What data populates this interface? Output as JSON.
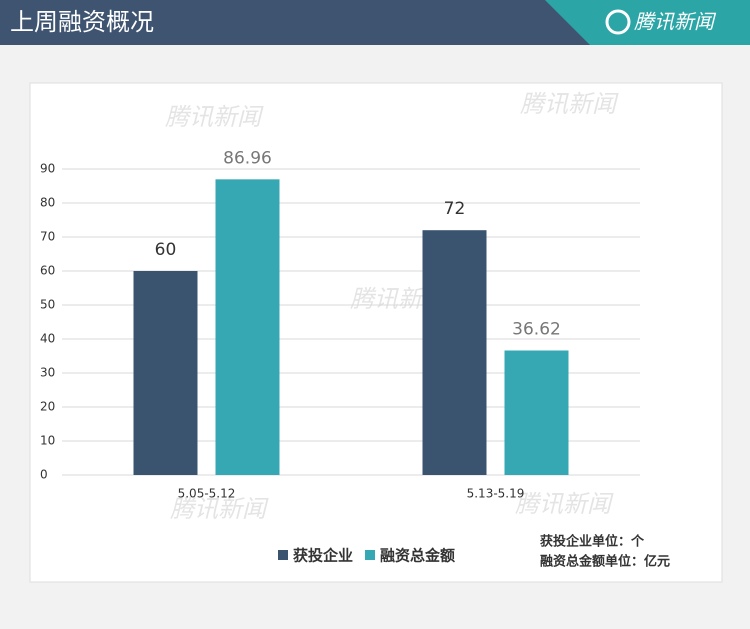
{
  "header": {
    "title": "上周融资概况",
    "brand": "腾讯新闻"
  },
  "chart_data": {
    "type": "bar",
    "categories": [
      "5.05-5.12",
      "5.13-5.19"
    ],
    "series": [
      {
        "name": "获投企业",
        "color": "#3a5470",
        "values": [
          60,
          72
        ]
      },
      {
        "name": "融资总金额",
        "color": "#35a8b4",
        "values": [
          86.96,
          36.62
        ]
      }
    ],
    "ylim": [
      0,
      90
    ],
    "yticks": [
      0,
      10,
      20,
      30,
      40,
      50,
      60,
      70,
      80,
      90
    ],
    "grid": true,
    "legend": "bottom",
    "annotations": [
      "获投企业单位：个",
      "融资总金额单位：亿元"
    ],
    "watermark": "腾讯新闻"
  }
}
